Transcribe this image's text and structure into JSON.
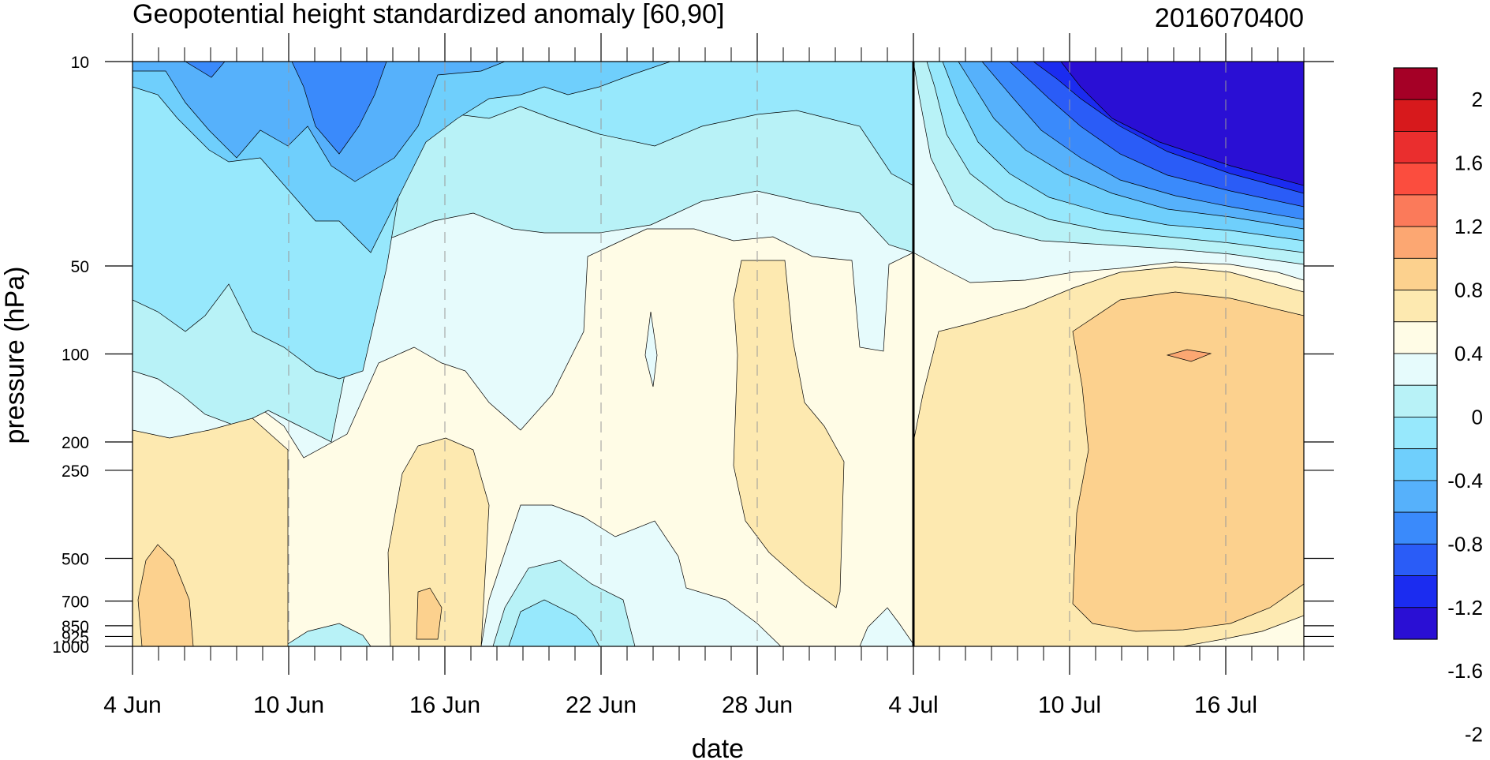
{
  "chart_data": {
    "type": "heatmap",
    "title": "Geopotential height standardized anomaly [60,90]",
    "subtitle": "2016070400",
    "xlabel": "date",
    "ylabel": "pressure (hPa)",
    "x_tick_labels": [
      "4 Jun",
      "10 Jun",
      "16 Jun",
      "22 Jun",
      "28 Jun",
      "4 Jul",
      "10 Jul",
      "16 Jul"
    ],
    "x_tick_days": [
      0,
      6,
      12,
      18,
      24,
      30,
      36,
      42
    ],
    "x_range_days": [
      0,
      45
    ],
    "y_levels": [
      10,
      50,
      100,
      200,
      250,
      500,
      700,
      850,
      925,
      1000
    ],
    "y_tick_labels": [
      "10",
      "50",
      "100",
      "200",
      "250",
      "500",
      "700",
      "850",
      "925",
      "1000"
    ],
    "y_scale": "log",
    "y_direction": "reversed",
    "analysis_line_day": 30,
    "colorbar": {
      "labels": [
        "2",
        "1.6",
        "1.2",
        "0.8",
        "0.4",
        "0",
        "-0.4",
        "-0.8",
        "-1.2",
        "-1.6",
        "-2"
      ],
      "colors": [
        "#a50026",
        "#d7191c",
        "#ea2e2e",
        "#fb4d3e",
        "#fb7a5a",
        "#fca772",
        "#fcd18e",
        "#fde9b0",
        "#fffce6",
        "#e6fbfc",
        "#b8f2f7",
        "#97e8fc",
        "#6fcffc",
        "#56b1fb",
        "#3a8afb",
        "#2a5cf7",
        "#1b2cf0",
        "#2a0fd4"
      ]
    },
    "grid": "dashed vertical lines at date ticks",
    "legend": "right"
  }
}
